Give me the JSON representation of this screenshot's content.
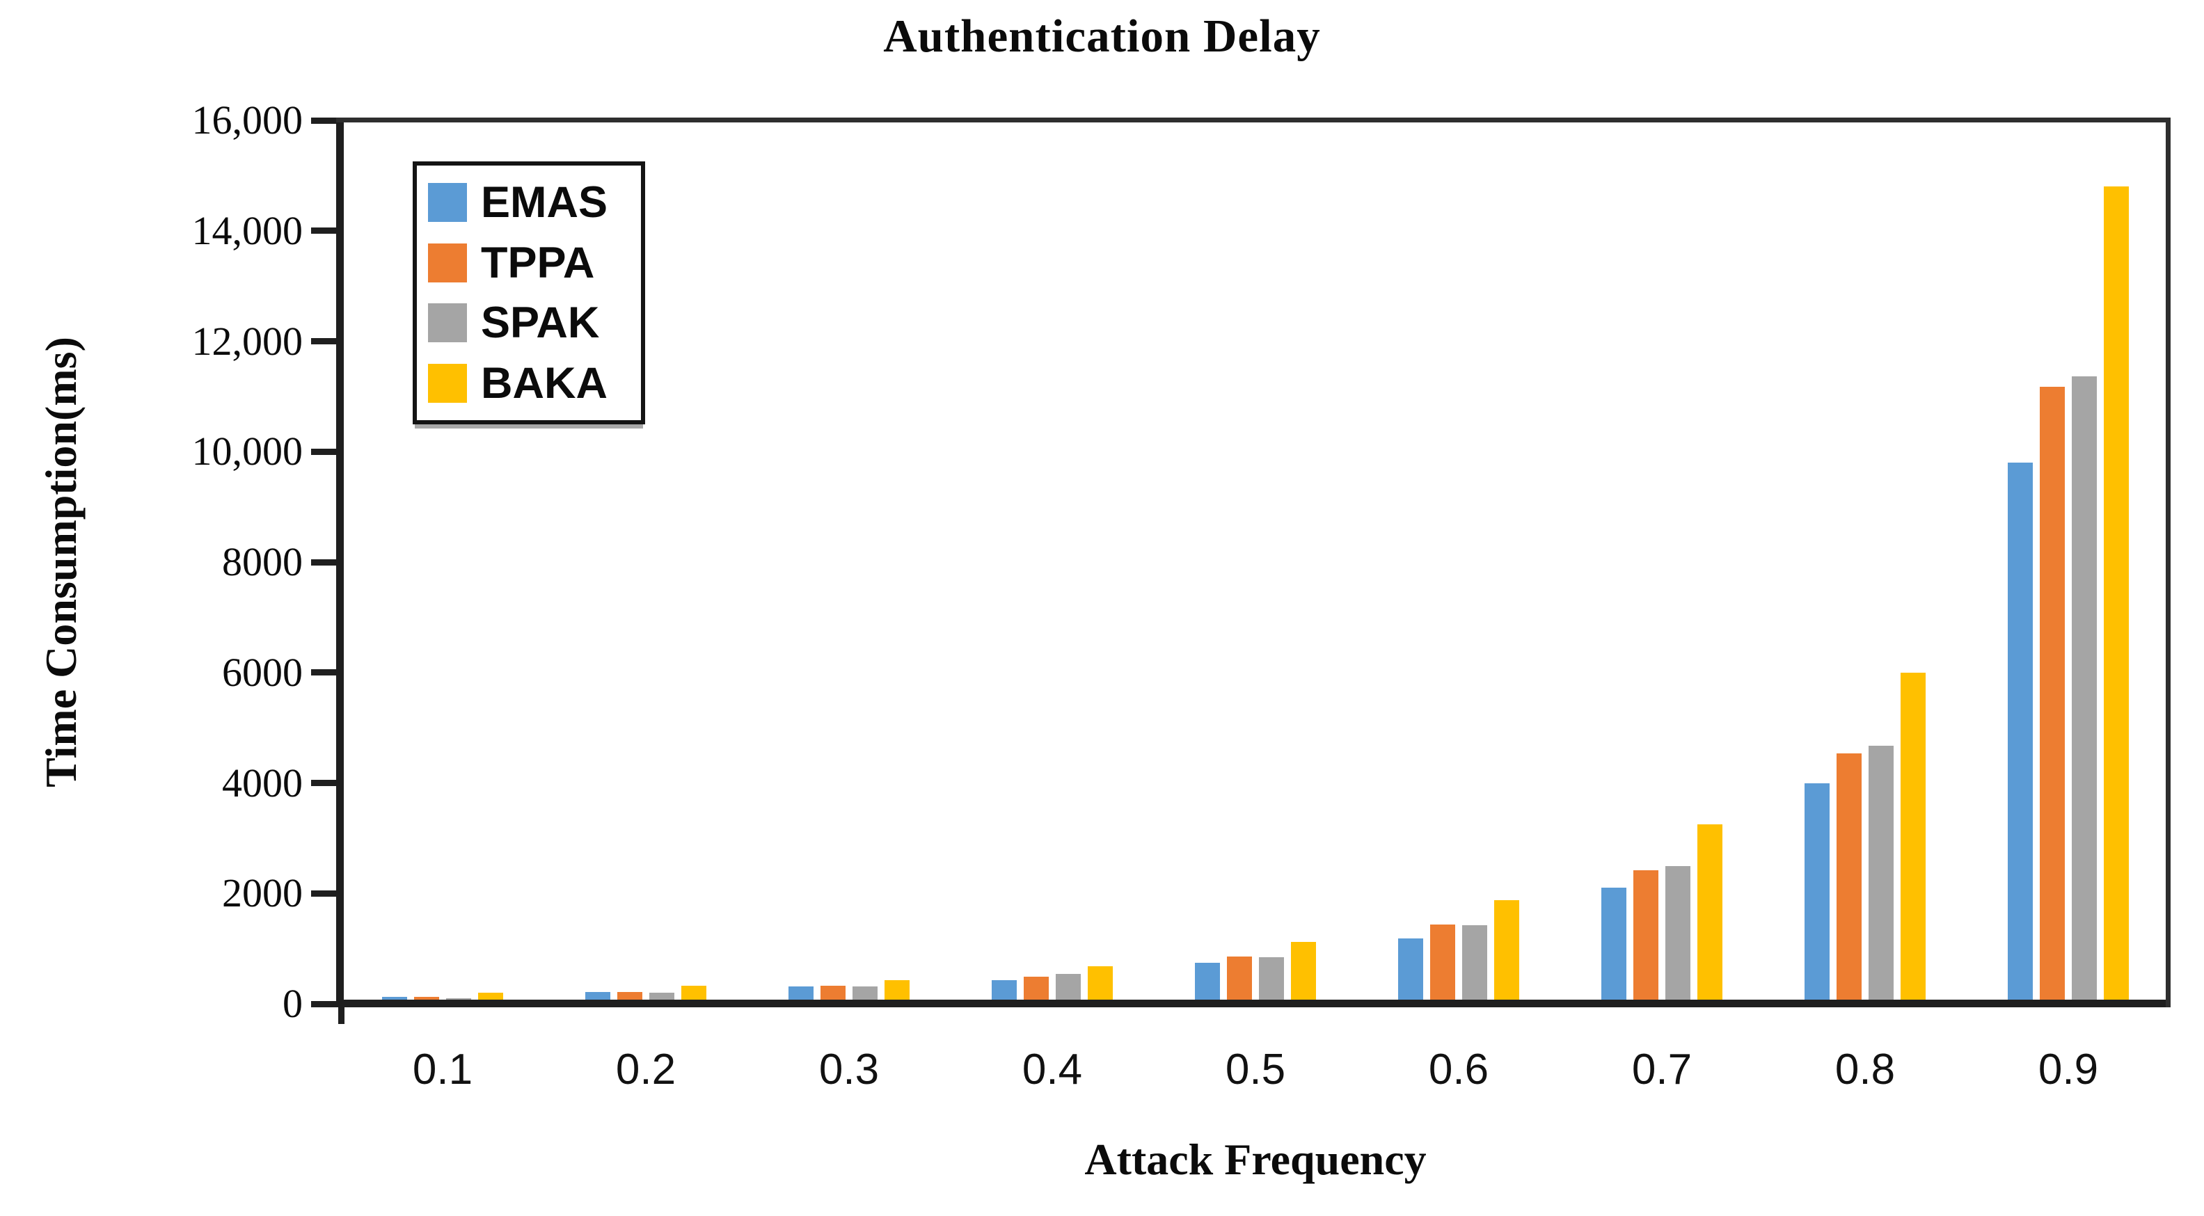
{
  "chart_data": {
    "type": "bar",
    "title": "Authentication Delay",
    "xlabel": "Attack Frequency",
    "ylabel": "Time Consumption(ms)",
    "categories": [
      "0.1",
      "0.2",
      "0.3",
      "0.4",
      "0.5",
      "0.6",
      "0.7",
      "0.8",
      "0.9"
    ],
    "series": [
      {
        "name": "EMAS",
        "color": "#5B9BD5",
        "values": [
          120,
          210,
          310,
          430,
          745,
          1180,
          2100,
          3990,
          9800
        ]
      },
      {
        "name": "TPPA",
        "color": "#ED7D31",
        "values": [
          130,
          220,
          330,
          490,
          860,
          1440,
          2420,
          4540,
          11170
        ]
      },
      {
        "name": "SPAK",
        "color": "#A5A5A5",
        "values": [
          100,
          200,
          320,
          545,
          850,
          1420,
          2500,
          4680,
          11370
        ]
      },
      {
        "name": "BAKA",
        "color": "#FFC000",
        "values": [
          200,
          330,
          430,
          680,
          1120,
          1880,
          3250,
          6000,
          14800
        ]
      }
    ],
    "ylim": [
      0,
      16000
    ],
    "yticks": [
      {
        "value": 0,
        "label": "0"
      },
      {
        "value": 2000,
        "label": "2000"
      },
      {
        "value": 4000,
        "label": "4000"
      },
      {
        "value": 6000,
        "label": "6000"
      },
      {
        "value": 8000,
        "label": "8000"
      },
      {
        "value": 10000,
        "label": "10,000"
      },
      {
        "value": 12000,
        "label": "12,000"
      },
      {
        "value": 14000,
        "label": "14,000"
      },
      {
        "value": 16000,
        "label": "16,000"
      }
    ],
    "legend": {
      "entries": [
        "EMAS",
        "TPPA",
        "SPAK",
        "BAKA"
      ],
      "position": "top-left-inside"
    },
    "grid": false
  },
  "colors": {
    "axis": "#1f1f1f",
    "text": "#000000",
    "background": "#ffffff"
  }
}
